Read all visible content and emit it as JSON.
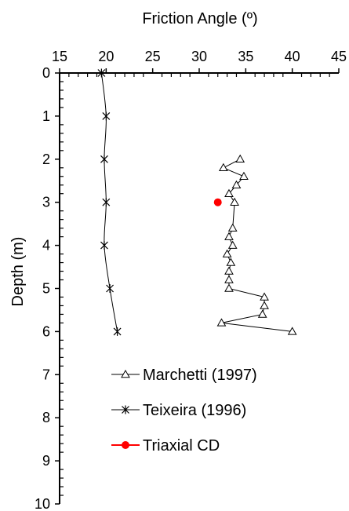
{
  "chart_data": {
    "type": "scatter",
    "title": "",
    "xlabel": "Friction Angle (º)",
    "ylabel": "Depth (m)",
    "x_axis_position": "top",
    "y_axis_inverted": true,
    "xlim": [
      15,
      45
    ],
    "ylim": [
      0,
      10
    ],
    "x_ticks": [
      15,
      20,
      25,
      30,
      35,
      40,
      45
    ],
    "y_ticks": [
      0,
      1,
      2,
      3,
      4,
      5,
      6,
      7,
      8,
      9,
      10
    ],
    "grid": false,
    "legend_placement": "bottom-right",
    "series": [
      {
        "name": "Marchetti (1997)",
        "marker": "triangle-open",
        "line": true,
        "color": "#000000",
        "points": [
          {
            "x": 34.4,
            "y": 2.0
          },
          {
            "x": 32.6,
            "y": 2.2
          },
          {
            "x": 34.8,
            "y": 2.4
          },
          {
            "x": 34.0,
            "y": 2.6
          },
          {
            "x": 33.2,
            "y": 2.8
          },
          {
            "x": 33.8,
            "y": 3.0
          },
          {
            "x": 33.6,
            "y": 3.6
          },
          {
            "x": 33.2,
            "y": 3.8
          },
          {
            "x": 33.6,
            "y": 4.0
          },
          {
            "x": 33.0,
            "y": 4.2
          },
          {
            "x": 33.4,
            "y": 4.4
          },
          {
            "x": 33.2,
            "y": 4.6
          },
          {
            "x": 33.2,
            "y": 4.8
          },
          {
            "x": 33.2,
            "y": 5.0
          },
          {
            "x": 37.0,
            "y": 5.2
          },
          {
            "x": 37.0,
            "y": 5.4
          },
          {
            "x": 36.8,
            "y": 5.6
          },
          {
            "x": 32.4,
            "y": 5.8
          },
          {
            "x": 40.0,
            "y": 6.0
          }
        ]
      },
      {
        "name": "Teixeira (1996)",
        "marker": "asterisk",
        "line": true,
        "color": "#000000",
        "points": [
          {
            "x": 19.5,
            "y": 0.0
          },
          {
            "x": 20.0,
            "y": 1.0
          },
          {
            "x": 19.8,
            "y": 2.0
          },
          {
            "x": 20.0,
            "y": 3.0
          },
          {
            "x": 19.8,
            "y": 4.0
          },
          {
            "x": 20.4,
            "y": 5.0
          },
          {
            "x": 21.2,
            "y": 6.0
          }
        ]
      },
      {
        "name": "Triaxial CD",
        "marker": "circle-filled",
        "line": false,
        "color": "#ff0000",
        "points": [
          {
            "x": 32.0,
            "y": 3.0
          }
        ]
      }
    ]
  }
}
